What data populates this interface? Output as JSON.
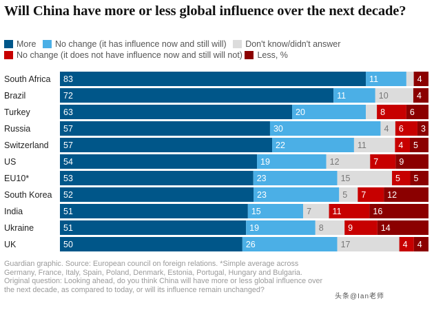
{
  "title": "Will China have more or less global influence over the next decade?",
  "legend": [
    {
      "label": "More",
      "color": "#005689"
    },
    {
      "label": "No change (it has influence now and still will)",
      "color": "#4bafe6"
    },
    {
      "label": "Don't know/didn't answer",
      "color": "#dcdcdc"
    },
    {
      "label": "No change (it does not have influence now and still will not)",
      "color": "#c70000"
    },
    {
      "label": "Less, %",
      "color": "#8b0000"
    }
  ],
  "chart_data": {
    "type": "bar",
    "orientation": "horizontal",
    "stacked": true,
    "unit": "%",
    "categories": [
      "South Africa",
      "Brazil",
      "Turkey",
      "Russia",
      "Switzerland",
      "US",
      "EU10*",
      "South Korea",
      "India",
      "Ukraine",
      "UK"
    ],
    "series": [
      {
        "name": "More",
        "color": "#005689",
        "values": [
          83,
          72,
          63,
          57,
          57,
          54,
          53,
          52,
          51,
          51,
          50
        ]
      },
      {
        "name": "No change (it has influence now and still will)",
        "color": "#4bafe6",
        "values": [
          11,
          11,
          20,
          30,
          22,
          19,
          23,
          23,
          15,
          19,
          26
        ]
      },
      {
        "name": "Don't know/didn't answer",
        "color": "#dcdcdc",
        "values": [
          2,
          10,
          3,
          4,
          11,
          12,
          15,
          5,
          7,
          8,
          17
        ]
      },
      {
        "name": "No change (it does not have influence now and still will not)",
        "color": "#c70000",
        "values": [
          0,
          0,
          8,
          6,
          4,
          7,
          5,
          7,
          11,
          9,
          4
        ]
      },
      {
        "name": "Less, %",
        "color": "#8b0000",
        "values": [
          4,
          4,
          6,
          3,
          5,
          9,
          5,
          12,
          16,
          14,
          4
        ]
      }
    ],
    "labels_shown": [
      [
        true,
        true,
        false,
        false,
        true
      ],
      [
        true,
        true,
        true,
        false,
        true
      ],
      [
        true,
        true,
        false,
        true,
        true
      ],
      [
        true,
        true,
        true,
        true,
        true
      ],
      [
        true,
        true,
        true,
        true,
        true
      ],
      [
        true,
        true,
        true,
        true,
        true
      ],
      [
        true,
        true,
        true,
        true,
        true
      ],
      [
        true,
        true,
        true,
        true,
        true
      ],
      [
        true,
        true,
        true,
        true,
        true
      ],
      [
        true,
        true,
        true,
        true,
        true
      ],
      [
        true,
        true,
        true,
        true,
        true
      ]
    ],
    "xlim": [
      0,
      100
    ],
    "grid": false,
    "legend_position": "top"
  },
  "footnote": "Guardian graphic. Source: European council on foreign relations. *Simple average across Germany, France, Italy, Spain, Poland, Denmark, Estonia, Portugal, Hungary and Bulgaria. Original question: Looking ahead, do you think China will have more or less global influence over the next decade, as compared to today, or will its influence remain unchanged?",
  "watermark": "头条@Ian老师"
}
